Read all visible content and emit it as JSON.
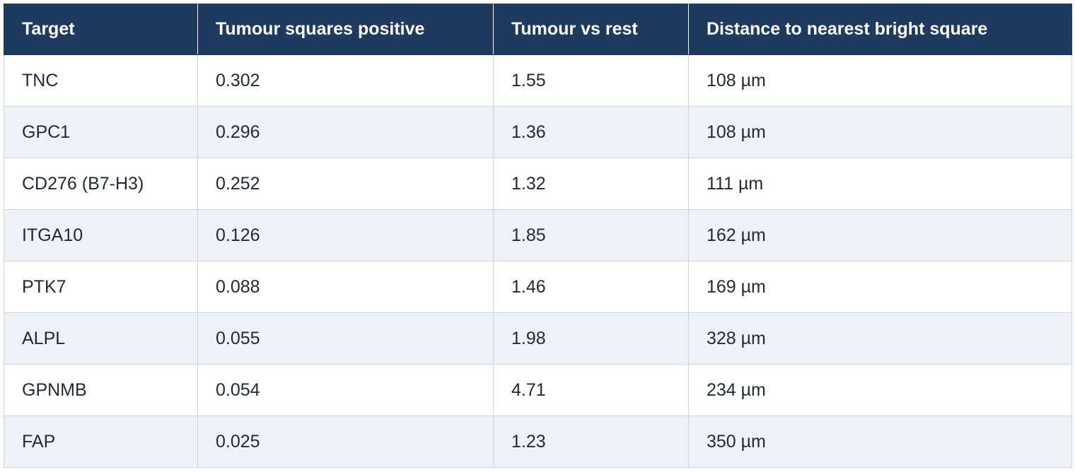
{
  "table": {
    "header": [
      "Target",
      "Tumour squares positive",
      "Tumour vs rest",
      "Distance to nearest bright square"
    ],
    "rows": [
      [
        "TNC",
        "0.302",
        "1.55",
        "108 µm"
      ],
      [
        "GPC1",
        "0.296",
        "1.36",
        "108 µm"
      ],
      [
        "CD276 (B7-H3)",
        "0.252",
        "1.32",
        "111 µm"
      ],
      [
        "ITGA10",
        "0.126",
        "1.85",
        "162 µm"
      ],
      [
        "PTK7",
        "0.088",
        "1.46",
        "169 µm"
      ],
      [
        "ALPL",
        "0.055",
        "1.98",
        "328 µm"
      ],
      [
        "GPNMB",
        "0.054",
        "4.71",
        "234 µm"
      ],
      [
        "FAP",
        "0.025",
        "1.23",
        "350 µm"
      ]
    ]
  }
}
